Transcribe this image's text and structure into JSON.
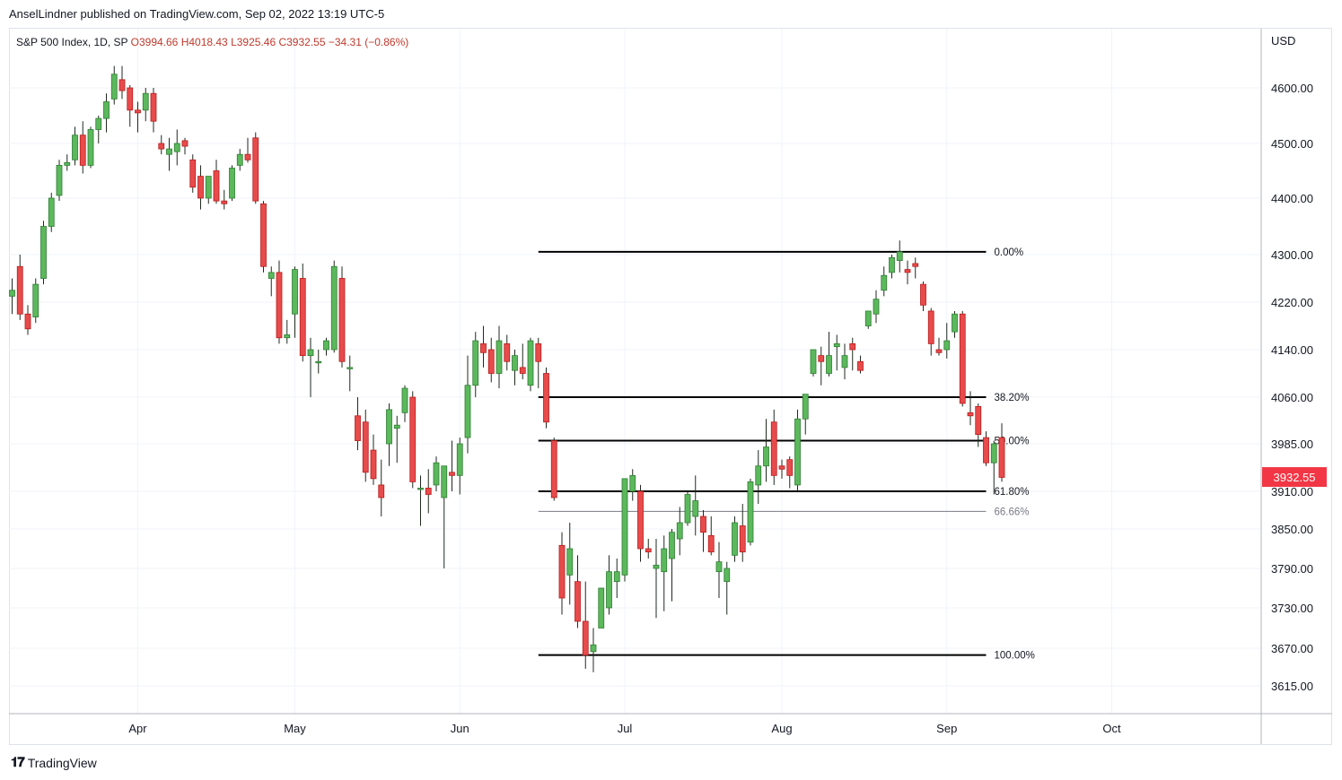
{
  "publisher_line": "AnselLindner published on TradingView.com, Sep 02, 2022 13:19 UTC-5",
  "footer": {
    "brand": "TradingView",
    "logo_icon": "tradingview-logo-icon"
  },
  "colors": {
    "up": "#4caf50",
    "up_fill": "#5cb85c",
    "down": "#e84b4b",
    "grid": "#f0f3fa",
    "fib": "#000000",
    "fib_faint": "#787b86",
    "price_badge": "#f23645"
  },
  "chart_data": {
    "type": "candlestick",
    "title": "S&P 500 Index, 1D, SP",
    "legend": {
      "symbol": "S&P 500 Index, 1D, SP",
      "open": "O3994.66",
      "high": "H4018.43",
      "low": "L3925.46",
      "close": "C3932.55",
      "change": "−34.31 (−0.86%)"
    },
    "currency": "USD",
    "last_price": "3932.55",
    "y_ticks": [
      {
        "label": "4600.00",
        "value": 4600
      },
      {
        "label": "4500.00",
        "value": 4500
      },
      {
        "label": "4400.00",
        "value": 4400
      },
      {
        "label": "4300.00",
        "value": 4300
      },
      {
        "label": "4220.00",
        "value": 4220
      },
      {
        "label": "4140.00",
        "value": 4140
      },
      {
        "label": "4060.00",
        "value": 4060
      },
      {
        "label": "3985.00",
        "value": 3985
      },
      {
        "label": "3910.00",
        "value": 3910
      },
      {
        "label": "3850.00",
        "value": 3850
      },
      {
        "label": "3790.00",
        "value": 3790
      },
      {
        "label": "3730.00",
        "value": 3730
      },
      {
        "label": "3670.00",
        "value": 3670
      },
      {
        "label": "3615.00",
        "value": 3615
      }
    ],
    "x_ticks": [
      {
        "label": "Apr",
        "index": 16
      },
      {
        "label": "May",
        "index": 36
      },
      {
        "label": "Jun",
        "index": 57
      },
      {
        "label": "Jul",
        "index": 78
      },
      {
        "label": "Aug",
        "index": 98
      },
      {
        "label": "Sep",
        "index": 119
      },
      {
        "label": "Oct",
        "index": 140
      }
    ],
    "fibonacci": [
      {
        "label": "0.00%",
        "price": 4305,
        "style": "solid"
      },
      {
        "label": "38.20%",
        "price": 4060,
        "style": "solid"
      },
      {
        "label": "50.00%",
        "price": 3990,
        "style": "solid"
      },
      {
        "label": "61.80%",
        "price": 3910,
        "style": "solid"
      },
      {
        "label": "66.66%",
        "price": 3878,
        "style": "faint"
      },
      {
        "label": "100.00%",
        "price": 3660,
        "style": "solid"
      }
    ],
    "fib_span": {
      "start_index": 67,
      "end_index": 124
    },
    "candles": [
      [
        4230,
        4260,
        4200,
        4240
      ],
      [
        4280,
        4300,
        4190,
        4200
      ],
      [
        4200,
        4215,
        4165,
        4175
      ],
      [
        4195,
        4260,
        4185,
        4250
      ],
      [
        4260,
        4360,
        4250,
        4350
      ],
      [
        4350,
        4410,
        4340,
        4400
      ],
      [
        4405,
        4470,
        4395,
        4460
      ],
      [
        4460,
        4480,
        4450,
        4465
      ],
      [
        4470,
        4530,
        4460,
        4515
      ],
      [
        4515,
        4540,
        4445,
        4460
      ],
      [
        4460,
        4530,
        4455,
        4525
      ],
      [
        4525,
        4550,
        4500,
        4545
      ],
      [
        4545,
        4590,
        4520,
        4575
      ],
      [
        4580,
        4640,
        4570,
        4625
      ],
      [
        4615,
        4640,
        4580,
        4595
      ],
      [
        4600,
        4605,
        4530,
        4560
      ],
      [
        4560,
        4575,
        4520,
        4555
      ],
      [
        4560,
        4600,
        4540,
        4590
      ],
      [
        4590,
        4600,
        4520,
        4540
      ],
      [
        4500,
        4515,
        4480,
        4490
      ],
      [
        4480,
        4510,
        4450,
        4490
      ],
      [
        4485,
        4525,
        4460,
        4500
      ],
      [
        4505,
        4510,
        4480,
        4495
      ],
      [
        4470,
        4480,
        4410,
        4420
      ],
      [
        4440,
        4460,
        4380,
        4400
      ],
      [
        4400,
        4440,
        4390,
        4440
      ],
      [
        4450,
        4470,
        4390,
        4395
      ],
      [
        4395,
        4415,
        4380,
        4390
      ],
      [
        4400,
        4460,
        4395,
        4455
      ],
      [
        4460,
        4490,
        4450,
        4480
      ],
      [
        4480,
        4510,
        4465,
        4470
      ],
      [
        4510,
        4520,
        4390,
        4395
      ],
      [
        4390,
        4395,
        4270,
        4280
      ],
      [
        4260,
        4280,
        4230,
        4270
      ],
      [
        4270,
        4290,
        4150,
        4160
      ],
      [
        4160,
        4190,
        4150,
        4165
      ],
      [
        4200,
        4280,
        4160,
        4275
      ],
      [
        4260,
        4285,
        4120,
        4130
      ],
      [
        4130,
        4160,
        4060,
        4140
      ],
      [
        4120,
        4140,
        4100,
        4120
      ],
      [
        4140,
        4160,
        4130,
        4155
      ],
      [
        4140,
        4290,
        4135,
        4280
      ],
      [
        4260,
        4280,
        4110,
        4120
      ],
      [
        4110,
        4130,
        4070,
        4110
      ],
      [
        4030,
        4060,
        3975,
        3990
      ],
      [
        4020,
        4040,
        3925,
        3940
      ],
      [
        3975,
        4000,
        3920,
        3930
      ],
      [
        3920,
        3960,
        3870,
        3900
      ],
      [
        3985,
        4050,
        3950,
        4040
      ],
      [
        4010,
        4030,
        3955,
        4015
      ],
      [
        4035,
        4080,
        4020,
        4075
      ],
      [
        4060,
        4070,
        3915,
        3925
      ],
      [
        3915,
        3935,
        3855,
        3915
      ],
      [
        3915,
        3945,
        3875,
        3905
      ],
      [
        3920,
        3965,
        3910,
        3955
      ],
      [
        3900,
        3940,
        3790,
        3950
      ],
      [
        3940,
        3990,
        3910,
        3935
      ],
      [
        3935,
        3995,
        3905,
        3985
      ],
      [
        3995,
        4130,
        3970,
        4080
      ],
      [
        4080,
        4170,
        4060,
        4155
      ],
      [
        4150,
        4180,
        4110,
        4135
      ],
      [
        4140,
        4160,
        4085,
        4100
      ],
      [
        4100,
        4180,
        4075,
        4155
      ],
      [
        4150,
        4165,
        4105,
        4120
      ],
      [
        4105,
        4140,
        4080,
        4130
      ],
      [
        4110,
        4150,
        4090,
        4100
      ],
      [
        4080,
        4160,
        4070,
        4155
      ],
      [
        4150,
        4160,
        4075,
        4120
      ],
      [
        4100,
        4110,
        4010,
        4020
      ],
      [
        3990,
        3995,
        3895,
        3900
      ],
      [
        3825,
        3845,
        3720,
        3745
      ],
      [
        3780,
        3860,
        3735,
        3820
      ],
      [
        3770,
        3810,
        3700,
        3710
      ],
      [
        3710,
        3770,
        3640,
        3660
      ],
      [
        3665,
        3700,
        3635,
        3675
      ],
      [
        3700,
        3760,
        3700,
        3760
      ],
      [
        3730,
        3810,
        3720,
        3785
      ],
      [
        3770,
        3805,
        3745,
        3785
      ],
      [
        3780,
        3930,
        3770,
        3930
      ],
      [
        3910,
        3945,
        3895,
        3935
      ],
      [
        3910,
        3920,
        3800,
        3820
      ],
      [
        3820,
        3835,
        3805,
        3815
      ],
      [
        3790,
        3835,
        3715,
        3795
      ],
      [
        3785,
        3840,
        3725,
        3820
      ],
      [
        3805,
        3850,
        3740,
        3845
      ],
      [
        3835,
        3885,
        3810,
        3860
      ],
      [
        3860,
        3910,
        3855,
        3905
      ],
      [
        3870,
        3935,
        3840,
        3895
      ],
      [
        3870,
        3880,
        3815,
        3845
      ],
      [
        3840,
        3870,
        3810,
        3815
      ],
      [
        3785,
        3830,
        3745,
        3800
      ],
      [
        3770,
        3800,
        3720,
        3790
      ],
      [
        3810,
        3870,
        3800,
        3860
      ],
      [
        3855,
        3890,
        3800,
        3815
      ],
      [
        3830,
        3930,
        3825,
        3925
      ],
      [
        3920,
        3975,
        3890,
        3950
      ],
      [
        3950,
        4025,
        3925,
        3980
      ],
      [
        4020,
        4040,
        3920,
        3935
      ],
      [
        3950,
        3960,
        3930,
        3945
      ],
      [
        3960,
        3965,
        3915,
        3935
      ],
      [
        3920,
        4040,
        3910,
        4025
      ],
      [
        4025,
        4065,
        4000,
        4065
      ],
      [
        4100,
        4140,
        4095,
        4140
      ],
      [
        4130,
        4145,
        4080,
        4120
      ],
      [
        4100,
        4170,
        4095,
        4130
      ],
      [
        4145,
        4165,
        4105,
        4150
      ],
      [
        4110,
        4150,
        4090,
        4130
      ],
      [
        4150,
        4160,
        4105,
        4140
      ],
      [
        4120,
        4130,
        4100,
        4105
      ],
      [
        4180,
        4195,
        4175,
        4205
      ],
      [
        4200,
        4240,
        4185,
        4225
      ],
      [
        4240,
        4280,
        4230,
        4265
      ],
      [
        4270,
        4300,
        4260,
        4295
      ],
      [
        4290,
        4325,
        4270,
        4305
      ],
      [
        4275,
        4290,
        4250,
        4270
      ],
      [
        4285,
        4295,
        4260,
        4280
      ],
      [
        4250,
        4255,
        4205,
        4215
      ],
      [
        4205,
        4210,
        4130,
        4150
      ],
      [
        4140,
        4160,
        4130,
        4135
      ],
      [
        4140,
        4185,
        4125,
        4155
      ],
      [
        4170,
        4205,
        4160,
        4200
      ],
      [
        4200,
        4205,
        4045,
        4050
      ],
      [
        4035,
        4070,
        4015,
        4030
      ],
      [
        4045,
        4050,
        3980,
        4000
      ],
      [
        3995,
        4005,
        3950,
        3955
      ],
      [
        3955,
        3990,
        3905,
        3985
      ],
      [
        3995,
        4018,
        3925,
        3932
      ]
    ]
  }
}
